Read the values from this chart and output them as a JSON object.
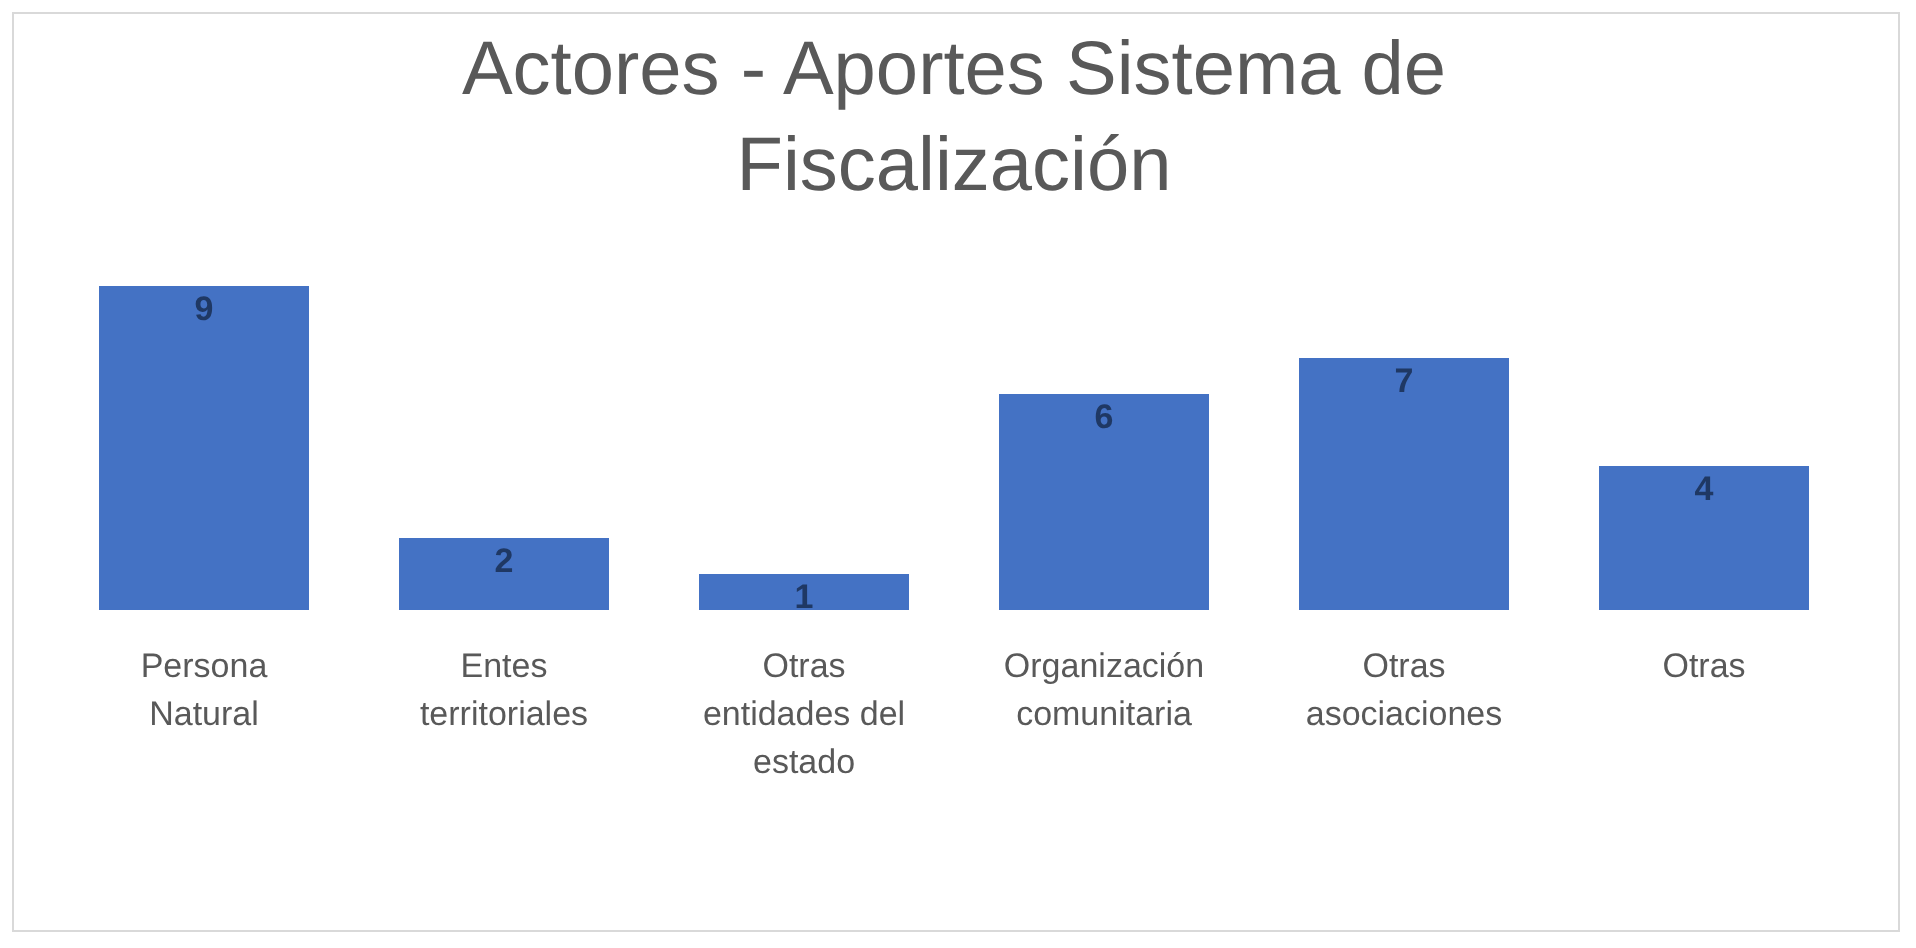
{
  "chart_data": {
    "type": "bar",
    "title": "Actores - Aportes Sistema de Fiscalización",
    "categories": [
      "Persona Natural",
      "Entes territoriales",
      "Otras entidades del estado",
      "Organización comunitaria",
      "Otras asociaciones",
      "Otras"
    ],
    "values": [
      9,
      2,
      1,
      6,
      7,
      4
    ],
    "color": "#4472c4",
    "data_labels": true
  }
}
